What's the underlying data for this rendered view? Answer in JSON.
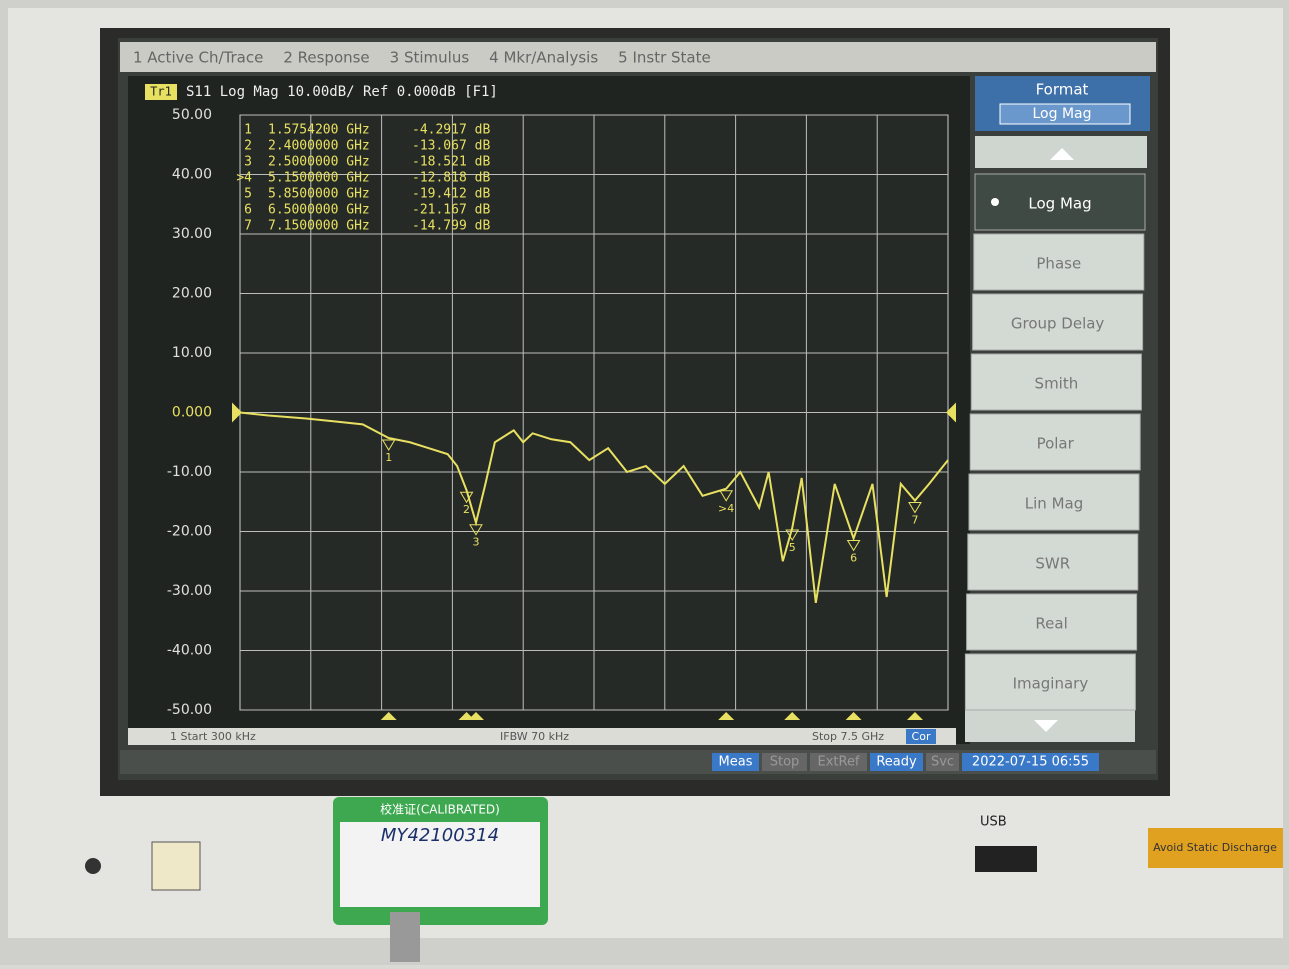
{
  "menu": [
    "1 Active Ch/Trace",
    "2 Response",
    "3 Stimulus",
    "4 Mkr/Analysis",
    "5 Instr State"
  ],
  "header": {
    "trace": "Tr1",
    "text": "S11 Log Mag 10.00dB/ Ref 0.000dB [F1]"
  },
  "markers": [
    {
      "id": "1",
      "freq": {
        "value": 1.57542,
        "label": "1.5754200 GHz"
      },
      "level": {
        "value": -4.2917,
        "label": "-4.2917 dB"
      }
    },
    {
      "id": "2",
      "freq": {
        "value": 2.4,
        "label": "2.4000000 GHz"
      },
      "level": {
        "value": -13.067,
        "label": "-13.067 dB"
      }
    },
    {
      "id": "3",
      "freq": {
        "value": 2.5,
        "label": "2.5000000 GHz"
      },
      "level": {
        "value": -18.521,
        "label": "-18.521 dB"
      }
    },
    {
      "id": ">4",
      "freq": {
        "value": 5.15,
        "label": "5.1500000 GHz"
      },
      "level": {
        "value": -12.818,
        "label": "-12.818 dB"
      }
    },
    {
      "id": "5",
      "freq": {
        "value": 5.85,
        "label": "5.8500000 GHz"
      },
      "level": {
        "value": -19.412,
        "label": "-19.412 dB"
      }
    },
    {
      "id": "6",
      "freq": {
        "value": 6.5,
        "label": "6.5000000 GHz"
      },
      "level": {
        "value": -21.167,
        "label": "-21.167 dB"
      }
    },
    {
      "id": "7",
      "freq": {
        "value": 7.15,
        "label": "7.1500000 GHz"
      },
      "level": {
        "value": -14.799,
        "label": "-14.799 dB"
      }
    }
  ],
  "chart_data": {
    "type": "line",
    "color": "#e8e060",
    "x": [
      0.0003,
      0.3,
      0.7,
      1.0,
      1.3,
      1.57542,
      1.8,
      2.0,
      2.2,
      2.3,
      2.4,
      2.5,
      2.6,
      2.7,
      2.9,
      3.0,
      3.1,
      3.3,
      3.5,
      3.7,
      3.9,
      4.1,
      4.3,
      4.5,
      4.7,
      4.9,
      5.15,
      5.3,
      5.5,
      5.6,
      5.75,
      5.85,
      5.95,
      6.1,
      6.3,
      6.5,
      6.7,
      6.85,
      7.0,
      7.15,
      7.3,
      7.45,
      7.5
    ],
    "values": [
      0,
      -0.5,
      -1,
      -1.5,
      -2,
      -4.2917,
      -5,
      -6,
      -7,
      -9,
      -13.067,
      -18.521,
      -12,
      -5,
      -3,
      -5,
      -3.5,
      -4.5,
      -5,
      -8,
      -6,
      -10,
      -9,
      -12,
      -9,
      -14,
      -12.818,
      -10,
      -16,
      -10,
      -25,
      -19.412,
      -11,
      -32,
      -12,
      -21.167,
      -12,
      -31,
      -12,
      -14.799,
      -12,
      -9,
      -8
    ],
    "xlim": [
      0.0003,
      7.5
    ],
    "ylim": [
      -50,
      50
    ],
    "yticks": [
      {
        "value": 50,
        "label": "50.00"
      },
      {
        "value": 40,
        "label": "40.00"
      },
      {
        "value": 30,
        "label": "30.00"
      },
      {
        "value": 20,
        "label": "20.00"
      },
      {
        "value": 10,
        "label": "10.00"
      },
      {
        "value": 0,
        "label": "0.000"
      },
      {
        "value": -10,
        "label": "-10.00"
      },
      {
        "value": -20,
        "label": "-20.00"
      },
      {
        "value": -30,
        "label": "-30.00"
      },
      {
        "value": -40,
        "label": "-40.00"
      },
      {
        "value": -50,
        "label": "-50.00"
      }
    ],
    "grid": true
  },
  "footer": {
    "start": "1 Start 300 kHz",
    "ifbw": "IFBW 70 kHz",
    "stop": "Stop 7.5 GHz",
    "cor": "Cor"
  },
  "softkeys": {
    "title": "Format",
    "current": "Log Mag",
    "items": [
      "Log Mag",
      "Phase",
      "Group Delay",
      "Smith",
      "Polar",
      "Lin Mag",
      "SWR",
      "Real",
      "Imaginary"
    ]
  },
  "status": [
    "Meas",
    "Stop",
    "ExtRef",
    "Ready",
    "Svc",
    "2022-07-15 06:55"
  ],
  "panel": {
    "usb": "USB",
    "warning": "Avoid Static Discharge",
    "sticker": "校准证(CALIBRATED)",
    "serial": "MY42100314"
  }
}
